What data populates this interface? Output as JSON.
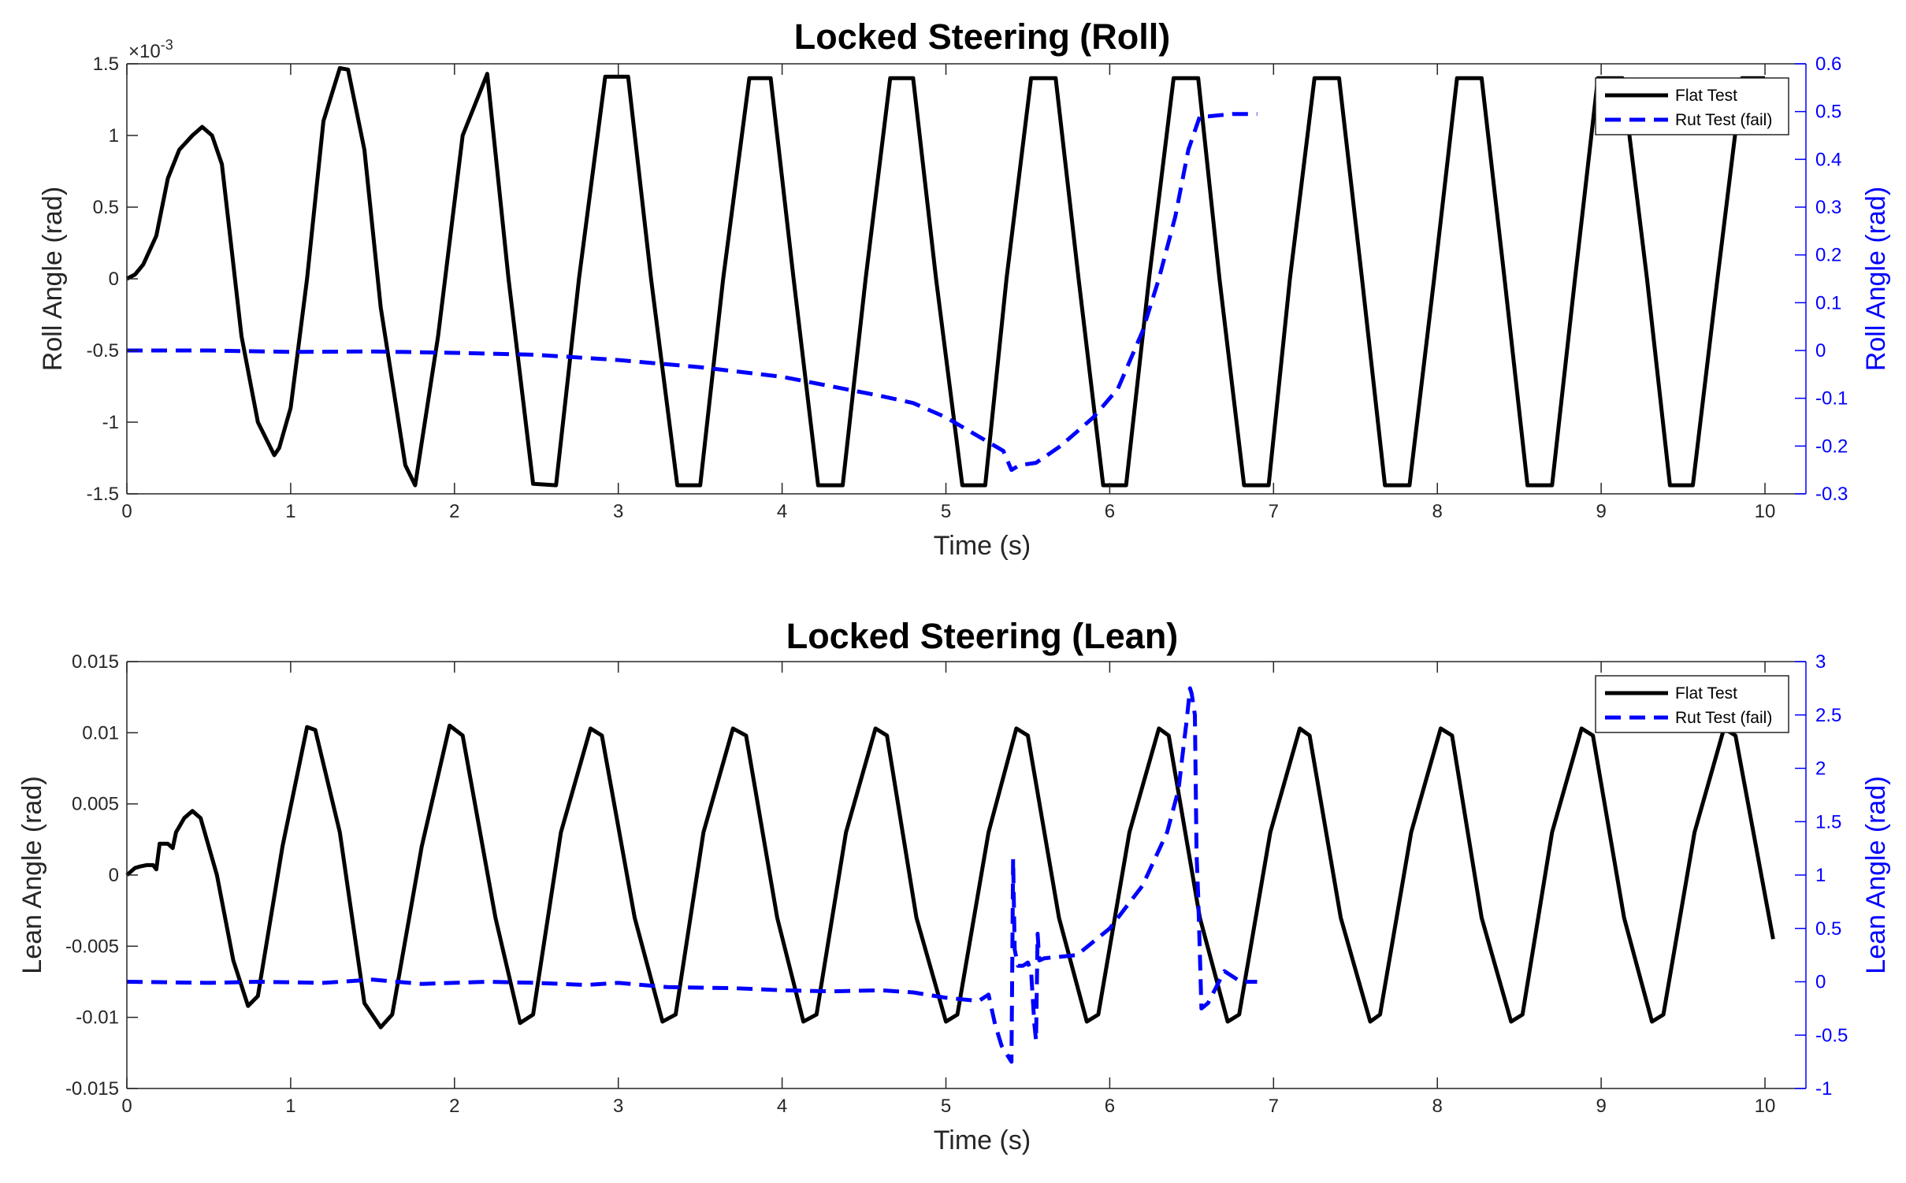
{
  "colors": {
    "flat": "#000000",
    "rut": "#0000ff",
    "axis": "#262626",
    "right_axis": "#0000ff"
  },
  "chart_data": [
    {
      "type": "line",
      "title": "Locked Steering (Roll)",
      "xlabel": "Time (s)",
      "ylabel": "Roll Angle (rad)",
      "ylabel_right": "Roll Angle (rad)",
      "exponent_label": "×10",
      "exponent_power": "-3",
      "xlim": [
        0,
        10.25
      ],
      "xticks": [
        0,
        1,
        2,
        3,
        4,
        5,
        6,
        7,
        8,
        9,
        10
      ],
      "ylim": [
        -0.0015,
        0.0015
      ],
      "yticks": [
        -1.5,
        -1,
        -0.5,
        0,
        0.5,
        1,
        1.5
      ],
      "ylim_right": [
        -0.3,
        0.6
      ],
      "yticks_right": [
        -0.3,
        -0.2,
        -0.1,
        0,
        0.1,
        0.2,
        0.3,
        0.4,
        0.5,
        0.6
      ],
      "legend_position": "top-right",
      "grid": false,
      "series": [
        {
          "name": "Flat Test",
          "axis": "left",
          "style": "solid",
          "x": [
            0,
            0.05,
            0.1,
            0.18,
            0.25,
            0.32,
            0.4,
            0.46,
            0.52,
            0.58,
            0.63,
            0.7,
            0.8,
            0.9,
            0.93,
            1.0,
            1.1,
            1.2,
            1.3,
            1.35,
            1.45,
            1.55,
            1.7,
            1.76,
            1.9,
            2.05,
            2.2,
            2.33,
            2.48,
            2.62,
            2.76,
            2.92,
            3.06,
            3.2,
            3.36,
            3.5,
            3.64,
            3.8,
            3.93,
            4.07,
            4.22,
            4.37,
            4.51,
            4.66,
            4.8,
            4.94,
            5.1,
            5.24,
            5.37,
            5.52,
            5.67,
            5.81,
            5.96,
            6.1,
            6.24,
            6.39,
            6.54,
            6.67,
            6.82,
            6.97,
            7.1,
            7.25,
            7.4,
            7.54,
            7.68,
            7.83,
            7.98,
            8.12,
            8.27,
            8.41,
            8.55,
            8.7,
            8.84,
            8.98,
            9.13,
            9.28,
            9.42,
            9.56,
            9.71,
            9.86,
            10.0
          ],
          "y": [
            0,
            3e-05,
            0.0001,
            0.0003,
            0.0007,
            0.0009,
            0.001,
            0.00106,
            0.001,
            0.0008,
            0.0003,
            -0.0004,
            -0.001,
            -0.00123,
            -0.00118,
            -0.0009,
            0,
            0.0011,
            0.00147,
            0.00146,
            0.0009,
            -0.0002,
            -0.0013,
            -0.00144,
            -0.0004,
            0.001,
            0.00143,
            0,
            -0.00143,
            -0.00144,
            0,
            0.00141,
            0.00141,
            0,
            -0.00144,
            -0.00144,
            0,
            0.0014,
            0.0014,
            0,
            -0.00144,
            -0.00144,
            0,
            0.0014,
            0.0014,
            0,
            -0.00144,
            -0.00144,
            0,
            0.0014,
            0.0014,
            0,
            -0.00144,
            -0.00144,
            0,
            0.0014,
            0.0014,
            0,
            -0.00144,
            -0.00144,
            0,
            0.0014,
            0.0014,
            0,
            -0.00144,
            -0.00144,
            0,
            0.0014,
            0.0014,
            0,
            -0.00144,
            -0.00144,
            0,
            0.0014,
            0.0014,
            0,
            -0.00144,
            -0.00144,
            0,
            0.0014,
            0.0014
          ]
        },
        {
          "name": "Rut Test (fail)",
          "axis": "right",
          "style": "dashed",
          "x": [
            0,
            0.5,
            1.0,
            1.5,
            2.0,
            2.5,
            3.0,
            3.5,
            4.0,
            4.3,
            4.6,
            4.8,
            5.0,
            5.2,
            5.35,
            5.4,
            5.45,
            5.55,
            5.7,
            5.9,
            6.05,
            6.2,
            6.3,
            6.4,
            6.48,
            6.55,
            6.6,
            6.75,
            6.9
          ],
          "y": [
            0,
            0,
            -0.003,
            -0.002,
            -0.005,
            -0.009,
            -0.02,
            -0.035,
            -0.055,
            -0.075,
            -0.095,
            -0.11,
            -0.14,
            -0.18,
            -0.21,
            -0.25,
            -0.24,
            -0.235,
            -0.2,
            -0.14,
            -0.08,
            0.04,
            0.15,
            0.28,
            0.42,
            0.49,
            0.49,
            0.495,
            0.495
          ]
        }
      ]
    },
    {
      "type": "line",
      "title": "Locked Steering (Lean)",
      "xlabel": "Time (s)",
      "ylabel": "Lean Angle (rad)",
      "ylabel_right": "Lean Angle (rad)",
      "xlim": [
        0,
        10.25
      ],
      "xticks": [
        0,
        1,
        2,
        3,
        4,
        5,
        6,
        7,
        8,
        9,
        10
      ],
      "ylim": [
        -0.015,
        0.015
      ],
      "yticks": [
        -0.015,
        -0.01,
        -0.005,
        0,
        0.005,
        0.01,
        0.015
      ],
      "ylim_right": [
        -1,
        3
      ],
      "yticks_right": [
        -1,
        -0.5,
        0,
        0.5,
        1,
        1.5,
        2,
        2.5,
        3
      ],
      "legend_position": "top-right",
      "grid": false,
      "series": [
        {
          "name": "Flat Test",
          "axis": "left",
          "style": "solid",
          "x": [
            0,
            0.02,
            0.05,
            0.08,
            0.12,
            0.16,
            0.18,
            0.2,
            0.25,
            0.28,
            0.3,
            0.35,
            0.4,
            0.45,
            0.55,
            0.65,
            0.74,
            0.8,
            0.95,
            1.1,
            1.15,
            1.3,
            1.45,
            1.55,
            1.62,
            1.8,
            1.97,
            2.05,
            2.25,
            2.4,
            2.48,
            2.65,
            2.83,
            2.9,
            3.1,
            3.27,
            3.35,
            3.52,
            3.7,
            3.78,
            3.97,
            4.13,
            4.21,
            4.39,
            4.57,
            4.64,
            4.82,
            5.0,
            5.07,
            5.26,
            5.43,
            5.5,
            5.69,
            5.86,
            5.93,
            6.12,
            6.3,
            6.36,
            6.55,
            6.72,
            6.79,
            6.98,
            7.16,
            7.22,
            7.41,
            7.59,
            7.65,
            7.84,
            8.02,
            8.09,
            8.27,
            8.45,
            8.52,
            8.7,
            8.88,
            8.95,
            9.14,
            9.31,
            9.38,
            9.57,
            9.75,
            9.82,
            10.05
          ],
          "y": [
            0,
            0.0002,
            0.0005,
            0.0006,
            0.0007,
            0.0007,
            0.0004,
            0.0022,
            0.0022,
            0.0019,
            0.003,
            0.004,
            0.0045,
            0.004,
            0,
            -0.006,
            -0.0092,
            -0.0085,
            0.002,
            0.0104,
            0.0102,
            0.003,
            -0.009,
            -0.0107,
            -0.0098,
            0.002,
            0.0105,
            0.0098,
            -0.003,
            -0.0104,
            -0.0098,
            0.003,
            0.0103,
            0.0098,
            -0.003,
            -0.0103,
            -0.0098,
            0.003,
            0.0103,
            0.0098,
            -0.003,
            -0.0103,
            -0.0098,
            0.003,
            0.0103,
            0.0098,
            -0.003,
            -0.0103,
            -0.0098,
            0.003,
            0.0103,
            0.0098,
            -0.003,
            -0.0103,
            -0.0098,
            0.003,
            0.0103,
            0.0098,
            -0.003,
            -0.0103,
            -0.0098,
            0.003,
            0.0103,
            0.0098,
            -0.003,
            -0.0103,
            -0.0098,
            0.003,
            0.0103,
            0.0098,
            -0.003,
            -0.0103,
            -0.0098,
            0.003,
            0.0103,
            0.0098,
            -0.003,
            -0.0103,
            -0.0098,
            0.003,
            0.0103,
            0.0098,
            -0.0045
          ]
        },
        {
          "name": "Rut Test (fail)",
          "axis": "right",
          "style": "dashed",
          "x": [
            0,
            0.5,
            0.8,
            1.2,
            1.5,
            1.8,
            2.2,
            2.5,
            2.8,
            3.0,
            3.3,
            3.7,
            4.0,
            4.3,
            4.6,
            4.8,
            5.0,
            5.2,
            5.26,
            5.3,
            5.34,
            5.38,
            5.4,
            5.41,
            5.42,
            5.44,
            5.47,
            5.5,
            5.52,
            5.54,
            5.55,
            5.56,
            5.57,
            5.6,
            5.8,
            6.0,
            6.2,
            6.35,
            6.42,
            6.45,
            6.47,
            6.49,
            6.5,
            6.52,
            6.53,
            6.54,
            6.56,
            6.6,
            6.7,
            6.8,
            6.9
          ],
          "y": [
            0,
            -0.01,
            0,
            -0.01,
            0.02,
            -0.02,
            0,
            -0.01,
            -0.03,
            -0.01,
            -0.05,
            -0.06,
            -0.08,
            -0.09,
            -0.08,
            -0.1,
            -0.15,
            -0.18,
            -0.12,
            -0.4,
            -0.6,
            -0.7,
            -0.75,
            1.15,
            0.3,
            0.15,
            0.15,
            0.18,
            0.1,
            -0.4,
            -0.55,
            0.45,
            0.2,
            0.22,
            0.25,
            0.5,
            0.9,
            1.4,
            1.8,
            2.2,
            2.45,
            2.75,
            2.7,
            2.5,
            1.2,
            0.8,
            -0.25,
            -0.2,
            0.1,
            0.0,
            0.0
          ]
        }
      ]
    }
  ]
}
